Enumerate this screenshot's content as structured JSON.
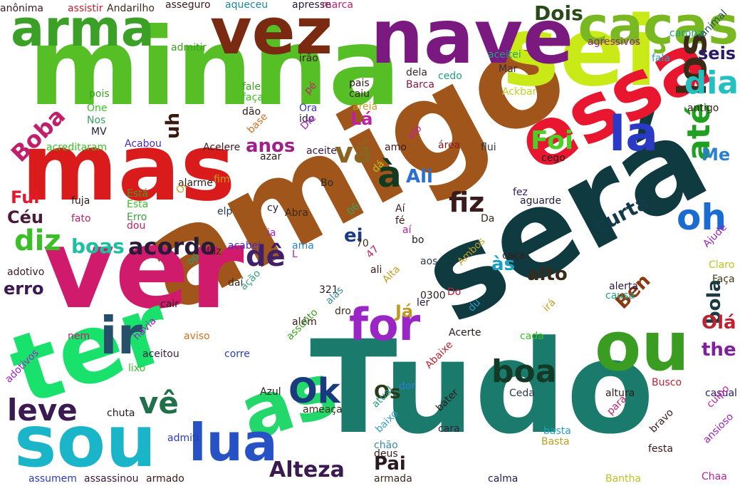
{
  "words": [
    {
      "text": "minha",
      "color": "#57bf26"
    },
    {
      "text": "amigo",
      "color": "#a0561a"
    },
    {
      "text": "Tudo",
      "color": "#1a7a6c"
    },
    {
      "text": "será",
      "color": "#0e3a40"
    },
    {
      "text": "ver",
      "color": "#d01a6c"
    },
    {
      "text": "mas",
      "color": "#d91b1b"
    },
    {
      "text": "sei",
      "color": "#c9ea16"
    },
    {
      "text": "ter",
      "color": "#18e26c"
    },
    {
      "text": "nave",
      "color": "#7a1a80"
    },
    {
      "text": "essa",
      "color": "#e8162e"
    },
    {
      "text": "sou",
      "color": "#1ab5c9"
    },
    {
      "text": "vez",
      "color": "#7a2a10"
    },
    {
      "text": "as",
      "color": "#22d86a"
    },
    {
      "text": "arma",
      "color": "#3aa026"
    },
    {
      "text": "caças",
      "color": "#7ab821"
    },
    {
      "text": "ou",
      "color": "#3a9c20"
    },
    {
      "text": "lua",
      "color": "#2652c6"
    },
    {
      "text": "for",
      "color": "#9a26c6"
    },
    {
      "text": "ir",
      "color": "#26506a"
    },
    {
      "text": "la",
      "color": "#2a3ac6"
    },
    {
      "text": "los",
      "color": "#3a2a16"
    },
    {
      "text": "oh",
      "color": "#1a6cd0"
    },
    {
      "text": "dia",
      "color": "#22c0c0"
    },
    {
      "text": "até",
      "color": "#20a020"
    },
    {
      "text": "à",
      "color": "#123a20"
    },
    {
      "text": "boa",
      "color": "#123a26"
    },
    {
      "text": "Ok",
      "color": "#1a3a80"
    },
    {
      "text": "leve",
      "color": "#3a1a50"
    },
    {
      "text": "vê",
      "color": "#20704a"
    },
    {
      "text": "dê",
      "color": "#40206a"
    },
    {
      "text": "diz",
      "color": "#3ac026"
    },
    {
      "text": "vá",
      "color": "#8a6420"
    },
    {
      "text": "fiz",
      "color": "#3a1a1a"
    },
    {
      "text": "Foi",
      "color": "#4ad026"
    },
    {
      "text": "Boba",
      "color": "#c0206a"
    },
    {
      "text": "Alteza",
      "color": "#3a1a50"
    },
    {
      "text": "acordo",
      "color": "#2a1a3a"
    },
    {
      "text": "boas",
      "color": "#1ac0a0"
    },
    {
      "text": "curta",
      "color": "#123a4a"
    },
    {
      "text": "Dois",
      "color": "#2a4a1a"
    },
    {
      "text": "bola",
      "color": "#1a3a40"
    },
    {
      "text": "Ben",
      "color": "#8a3a10"
    },
    {
      "text": "Olá",
      "color": "#c02030"
    },
    {
      "text": "the",
      "color": "#8020a0"
    },
    {
      "text": "Os",
      "color": "#2a3a1a"
    },
    {
      "text": "Pai",
      "color": "#2a1a20"
    },
    {
      "text": "uh",
      "color": "#3a1a0e"
    },
    {
      "text": "anos",
      "color": "#a0208a"
    },
    {
      "text": "Ali",
      "color": "#2a70d0"
    },
    {
      "text": "às",
      "color": "#1aa0c0"
    },
    {
      "text": "ei",
      "color": "#1a3a8a"
    },
    {
      "text": "alto",
      "color": "#3a2a1a"
    },
    {
      "text": "Já",
      "color": "#c09a20"
    },
    {
      "text": "Fui",
      "color": "#e8162e"
    },
    {
      "text": "Céu",
      "color": "#4a1a3a"
    },
    {
      "text": "erro",
      "color": "#3a1a50"
    },
    {
      "text": "seis",
      "color": "#2a1a6a"
    },
    {
      "text": "Me",
      "color": "#2a80d0"
    },
    {
      "text": "Lá",
      "color": "#c020a0"
    },
    {
      "text": "anônima",
      "color": "#3a1a20"
    },
    {
      "text": "assistir",
      "color": "#c02030"
    },
    {
      "text": "Andarilho",
      "color": "#3a2a1a"
    },
    {
      "text": "asseguro",
      "color": "#3a1a1a"
    },
    {
      "text": "aqueceu",
      "color": "#1a8a9a"
    },
    {
      "text": "apresse",
      "color": "#2a1a3a"
    },
    {
      "text": "marca",
      "color": "#c0206a"
    },
    {
      "text": "admitir",
      "color": "#3aa020"
    },
    {
      "text": "irão",
      "color": "#3a1a1a"
    },
    {
      "text": "dela",
      "color": "#3a2a2a"
    },
    {
      "text": "pais",
      "color": "#2a1a1a"
    },
    {
      "text": "caiu",
      "color": "#3a1a20"
    },
    {
      "text": "areia",
      "color": "#c0a020"
    },
    {
      "text": "Barca",
      "color": "#8a1a40"
    },
    {
      "text": "cedo",
      "color": "#20a080"
    },
    {
      "text": "Mar",
      "color": "#3a2a4a"
    },
    {
      "text": "aceitei",
      "color": "#20a080"
    },
    {
      "text": "Ackbar",
      "color": "#c0d020"
    },
    {
      "text": "agressivos",
      "color": "#a0206a"
    },
    {
      "text": "carona",
      "color": "#20a080"
    },
    {
      "text": "animal",
      "color": "#2a4a60"
    },
    {
      "text": "fala",
      "color": "#2aa0c0"
    },
    {
      "text": "antigo",
      "color": "#3a1a1a"
    },
    {
      "text": "pois",
      "color": "#3aa020"
    },
    {
      "text": "One",
      "color": "#3ac026"
    },
    {
      "text": "Nos",
      "color": "#3aa060"
    },
    {
      "text": "MV",
      "color": "#2a1a3a"
    },
    {
      "text": "fale",
      "color": "#3aa020"
    },
    {
      "text": "faça",
      "color": "#3ac026"
    },
    {
      "text": "dão",
      "color": "#2a1a1a"
    },
    {
      "text": "pé",
      "color": "#c0206a"
    },
    {
      "text": "Ora",
      "color": "#3a3ac0"
    },
    {
      "text": "ido",
      "color": "#2a1a3a"
    },
    {
      "text": "base",
      "color": "#d07020"
    },
    {
      "text": "Die",
      "color": "#a020c0"
    },
    {
      "text": "Acabou",
      "color": "#4a2ac0"
    },
    {
      "text": "acreditaram",
      "color": "#3ac026"
    },
    {
      "text": "Acelere",
      "color": "#3a1a1a"
    },
    {
      "text": "azar",
      "color": "#2a1a1a"
    },
    {
      "text": "aceite",
      "color": "#3a1a3a"
    },
    {
      "text": "amo",
      "color": "#3a1a1a"
    },
    {
      "text": "elo",
      "color": "#c020a0"
    },
    {
      "text": "área",
      "color": "#8a1a20"
    },
    {
      "text": "flui",
      "color": "#2a3a3a"
    },
    {
      "text": "cego",
      "color": "#2a1a1a"
    },
    {
      "text": "alarme",
      "color": "#2a1a1a"
    },
    {
      "text": "fim",
      "color": "#c0a020"
    },
    {
      "text": "Oi",
      "color": "#c0a020"
    },
    {
      "text": "Bo",
      "color": "#2a2a1a"
    },
    {
      "text": "dá",
      "color": "#c0c020"
    },
    {
      "text": "Está",
      "color": "#3aa020"
    },
    {
      "text": "Esta",
      "color": "#3ac026"
    },
    {
      "text": "Erro",
      "color": "#3aa040"
    },
    {
      "text": "dou",
      "color": "#c0206a"
    },
    {
      "text": "fuja",
      "color": "#2a1a1a"
    },
    {
      "text": "fato",
      "color": "#c0206a"
    },
    {
      "text": "elp",
      "color": "#2a3a4a"
    },
    {
      "text": "cy",
      "color": "#2a1a3a"
    },
    {
      "text": "Abra",
      "color": "#3a2a1a"
    },
    {
      "text": "Aí",
      "color": "#3a1a1a"
    },
    {
      "text": "06",
      "color": "#3aa060"
    },
    {
      "text": "fé",
      "color": "#3a1a1a"
    },
    {
      "text": "aí",
      "color": "#c020a0"
    },
    {
      "text": "Da",
      "color": "#3a2a1a"
    },
    {
      "text": "fez",
      "color": "#3a1a6a"
    },
    {
      "text": "aguarde",
      "color": "#2a1a3a"
    },
    {
      "text": "ia",
      "color": "#a020c0"
    },
    {
      "text": "ama",
      "color": "#2a80d0"
    },
    {
      "text": "acabei",
      "color": "#4a2ac0"
    },
    {
      "text": "faz",
      "color": "#3a1a1a"
    },
    {
      "text": "L",
      "color": "#c020a0"
    },
    {
      "text": "70",
      "color": "#3a2a1a"
    },
    {
      "text": "47",
      "color": "#c0206a"
    },
    {
      "text": "bo",
      "color": "#2a1a1a"
    },
    {
      "text": "aos",
      "color": "#2a3a4a"
    },
    {
      "text": "Ambos",
      "color": "#c0a020"
    },
    {
      "text": "caça",
      "color": "#3a1a1a"
    },
    {
      "text": "Ajude",
      "color": "#a020c0"
    },
    {
      "text": "Claro",
      "color": "#c0c020"
    },
    {
      "text": "Faça",
      "color": "#3a3a1a"
    },
    {
      "text": "adotivo",
      "color": "#3a1a1a"
    },
    {
      "text": "op",
      "color": "#20a080"
    },
    {
      "text": "daí",
      "color": "#3a2a1a"
    },
    {
      "text": "ação",
      "color": "#3aa080"
    },
    {
      "text": "ali",
      "color": "#3a1a1a"
    },
    {
      "text": "321",
      "color": "#2a1a1a"
    },
    {
      "text": "alas",
      "color": "#3a8aa0"
    },
    {
      "text": "dro",
      "color": "#3a2a1a"
    },
    {
      "text": "Alta",
      "color": "#c0a020"
    },
    {
      "text": "0300",
      "color": "#2a1a1a"
    },
    {
      "text": "Do",
      "color": "#c02030"
    },
    {
      "text": "ler",
      "color": "#2a1a3a"
    },
    {
      "text": "du",
      "color": "#2aa0c0"
    },
    {
      "text": "irá",
      "color": "#c0a020"
    },
    {
      "text": "alerta",
      "color": "#2a1a4a"
    },
    {
      "text": "causa",
      "color": "#20a080"
    },
    {
      "text": "cair",
      "color": "#2a1a1a"
    },
    {
      "text": "além",
      "color": "#3a1a1a"
    },
    {
      "text": "assunto",
      "color": "#3aa020"
    },
    {
      "text": "Acerte",
      "color": "#2a1a1a"
    },
    {
      "text": "cada",
      "color": "#3ac026"
    },
    {
      "text": "nem",
      "color": "#c0206a"
    },
    {
      "text": "havia",
      "color": "#a020c0"
    },
    {
      "text": "aviso",
      "color": "#d07020"
    },
    {
      "text": "corre",
      "color": "#2a3ac0"
    },
    {
      "text": "aceitou",
      "color": "#3a1a3a"
    },
    {
      "text": "lixo",
      "color": "#3ac026"
    },
    {
      "text": "Abaixe",
      "color": "#c02030"
    },
    {
      "text": "adotivos",
      "color": "#a020c0"
    },
    {
      "text": "Azul",
      "color": "#2a1a1a"
    },
    {
      "text": "dor",
      "color": "#2a80d0"
    },
    {
      "text": "Ceda",
      "color": "#2a3a4a"
    },
    {
      "text": "altura",
      "color": "#2a1a1a"
    },
    {
      "text": "Busco",
      "color": "#c02030"
    },
    {
      "text": "casual",
      "color": "#2a1a6a"
    },
    {
      "text": "culpo",
      "color": "#c020a0"
    },
    {
      "text": "chuta",
      "color": "#2a1a1a"
    },
    {
      "text": "ameaça",
      "color": "#3a2a1a"
    },
    {
      "text": "atual",
      "color": "#20a080"
    },
    {
      "text": "bater",
      "color": "#2a1a1a"
    },
    {
      "text": "cara",
      "color": "#3a1a3a"
    },
    {
      "text": "para",
      "color": "#c0206a"
    },
    {
      "text": "baixo",
      "color": "#3aa0c0"
    },
    {
      "text": "chão",
      "color": "#3a8aa0"
    },
    {
      "text": "admiti",
      "color": "#2a3ac0"
    },
    {
      "text": "deus",
      "color": "#3a1a1a"
    },
    {
      "text": "basta",
      "color": "#20a0c0"
    },
    {
      "text": "Basta",
      "color": "#c0a020"
    },
    {
      "text": "bravo",
      "color": "#3a1a1a"
    },
    {
      "text": "festa",
      "color": "#3a1a1a"
    },
    {
      "text": "ansioso",
      "color": "#a020c0"
    },
    {
      "text": "assumem",
      "color": "#2a3ac0"
    },
    {
      "text": "assassinou",
      "color": "#3a1a3a"
    },
    {
      "text": "armado",
      "color": "#3a1a1a"
    },
    {
      "text": "armada",
      "color": "#3a2a1a"
    },
    {
      "text": "calma",
      "color": "#2a1a4a"
    },
    {
      "text": "Bantha",
      "color": "#c0c020"
    },
    {
      "text": "Chaa",
      "color": "#c020a0"
    }
  ]
}
